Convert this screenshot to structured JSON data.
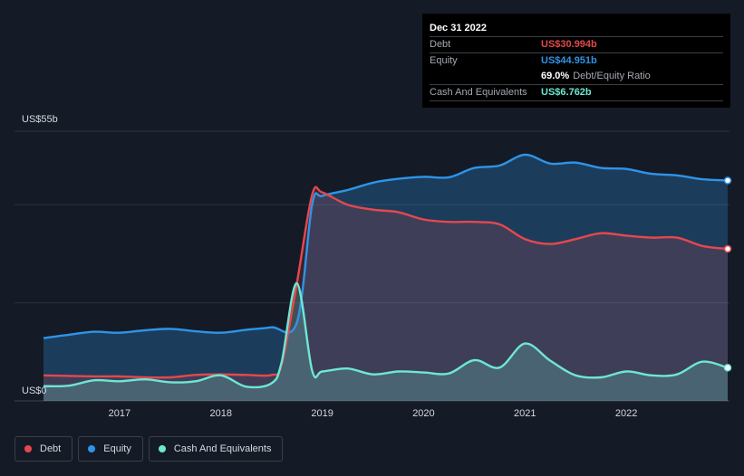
{
  "tooltip": {
    "date": "Dec 31 2022",
    "debt_label": "Debt",
    "debt_value": "US$30.994b",
    "equity_label": "Equity",
    "equity_value": "US$44.951b",
    "ratio_value": "69.0%",
    "ratio_label": "Debt/Equity Ratio",
    "cash_label": "Cash And Equivalents",
    "cash_value": "US$6.762b"
  },
  "colors": {
    "debt": "#e5484d",
    "equity": "#2e94e8",
    "cash": "#6ee7d3",
    "background": "#151b26"
  },
  "legend": [
    "Debt",
    "Equity",
    "Cash And Equivalents"
  ],
  "chart_data": {
    "type": "area",
    "y_top_label": "US$55b",
    "y_bottom_label": "US$0",
    "ylim": [
      0,
      55
    ],
    "xlim": [
      2016.25,
      2023.0
    ],
    "x_ticks": [
      "2017",
      "2018",
      "2019",
      "2020",
      "2021",
      "2022"
    ],
    "grid": true,
    "series": [
      {
        "name": "Debt",
        "x": [
          2016.25,
          2016.75,
          2017.0,
          2017.25,
          2017.5,
          2017.75,
          2018.0,
          2018.25,
          2018.5,
          2018.6,
          2018.75,
          2018.9,
          2019.0,
          2019.25,
          2019.5,
          2019.75,
          2020.0,
          2020.25,
          2020.5,
          2020.75,
          2021.0,
          2021.25,
          2021.5,
          2021.75,
          2022.0,
          2022.25,
          2022.5,
          2022.75,
          2023.0
        ],
        "values": [
          5.2,
          5.0,
          5.0,
          4.8,
          4.8,
          5.3,
          5.4,
          5.3,
          5.3,
          7.5,
          24.0,
          42.0,
          42.5,
          40.0,
          39.0,
          38.5,
          37.0,
          36.5,
          36.5,
          36.0,
          33.0,
          32.0,
          33.0,
          34.2,
          33.7,
          33.3,
          33.3,
          31.6,
          31.0
        ]
      },
      {
        "name": "Equity",
        "x": [
          2016.25,
          2016.5,
          2016.75,
          2017.0,
          2017.25,
          2017.5,
          2017.75,
          2018.0,
          2018.25,
          2018.5,
          2018.75,
          2018.9,
          2019.0,
          2019.25,
          2019.5,
          2019.75,
          2020.0,
          2020.25,
          2020.5,
          2020.75,
          2021.0,
          2021.25,
          2021.5,
          2021.75,
          2022.0,
          2022.25,
          2022.5,
          2022.75,
          2023.0
        ],
        "values": [
          12.8,
          13.5,
          14.1,
          13.9,
          14.4,
          14.7,
          14.2,
          13.9,
          14.5,
          15.0,
          16.0,
          40.0,
          41.8,
          43.0,
          44.5,
          45.3,
          45.7,
          45.6,
          47.5,
          48.0,
          50.2,
          48.4,
          48.6,
          47.5,
          47.3,
          46.3,
          46.0,
          45.2,
          44.95
        ]
      },
      {
        "name": "Cash And Equivalents",
        "x": [
          2016.25,
          2016.5,
          2016.75,
          2017.0,
          2017.25,
          2017.5,
          2017.75,
          2018.0,
          2018.25,
          2018.5,
          2018.6,
          2018.75,
          2018.9,
          2019.0,
          2019.25,
          2019.5,
          2019.75,
          2020.0,
          2020.25,
          2020.5,
          2020.75,
          2021.0,
          2021.25,
          2021.5,
          2021.75,
          2022.0,
          2022.25,
          2022.5,
          2022.75,
          2023.0
        ],
        "values": [
          3.0,
          3.1,
          4.2,
          4.0,
          4.4,
          3.8,
          4.0,
          5.2,
          2.9,
          3.6,
          8.0,
          24.0,
          6.2,
          6.0,
          6.6,
          5.4,
          6.0,
          5.8,
          5.6,
          8.3,
          6.8,
          11.7,
          8.2,
          5.2,
          4.8,
          6.0,
          5.2,
          5.4,
          8.0,
          6.76
        ]
      }
    ]
  }
}
